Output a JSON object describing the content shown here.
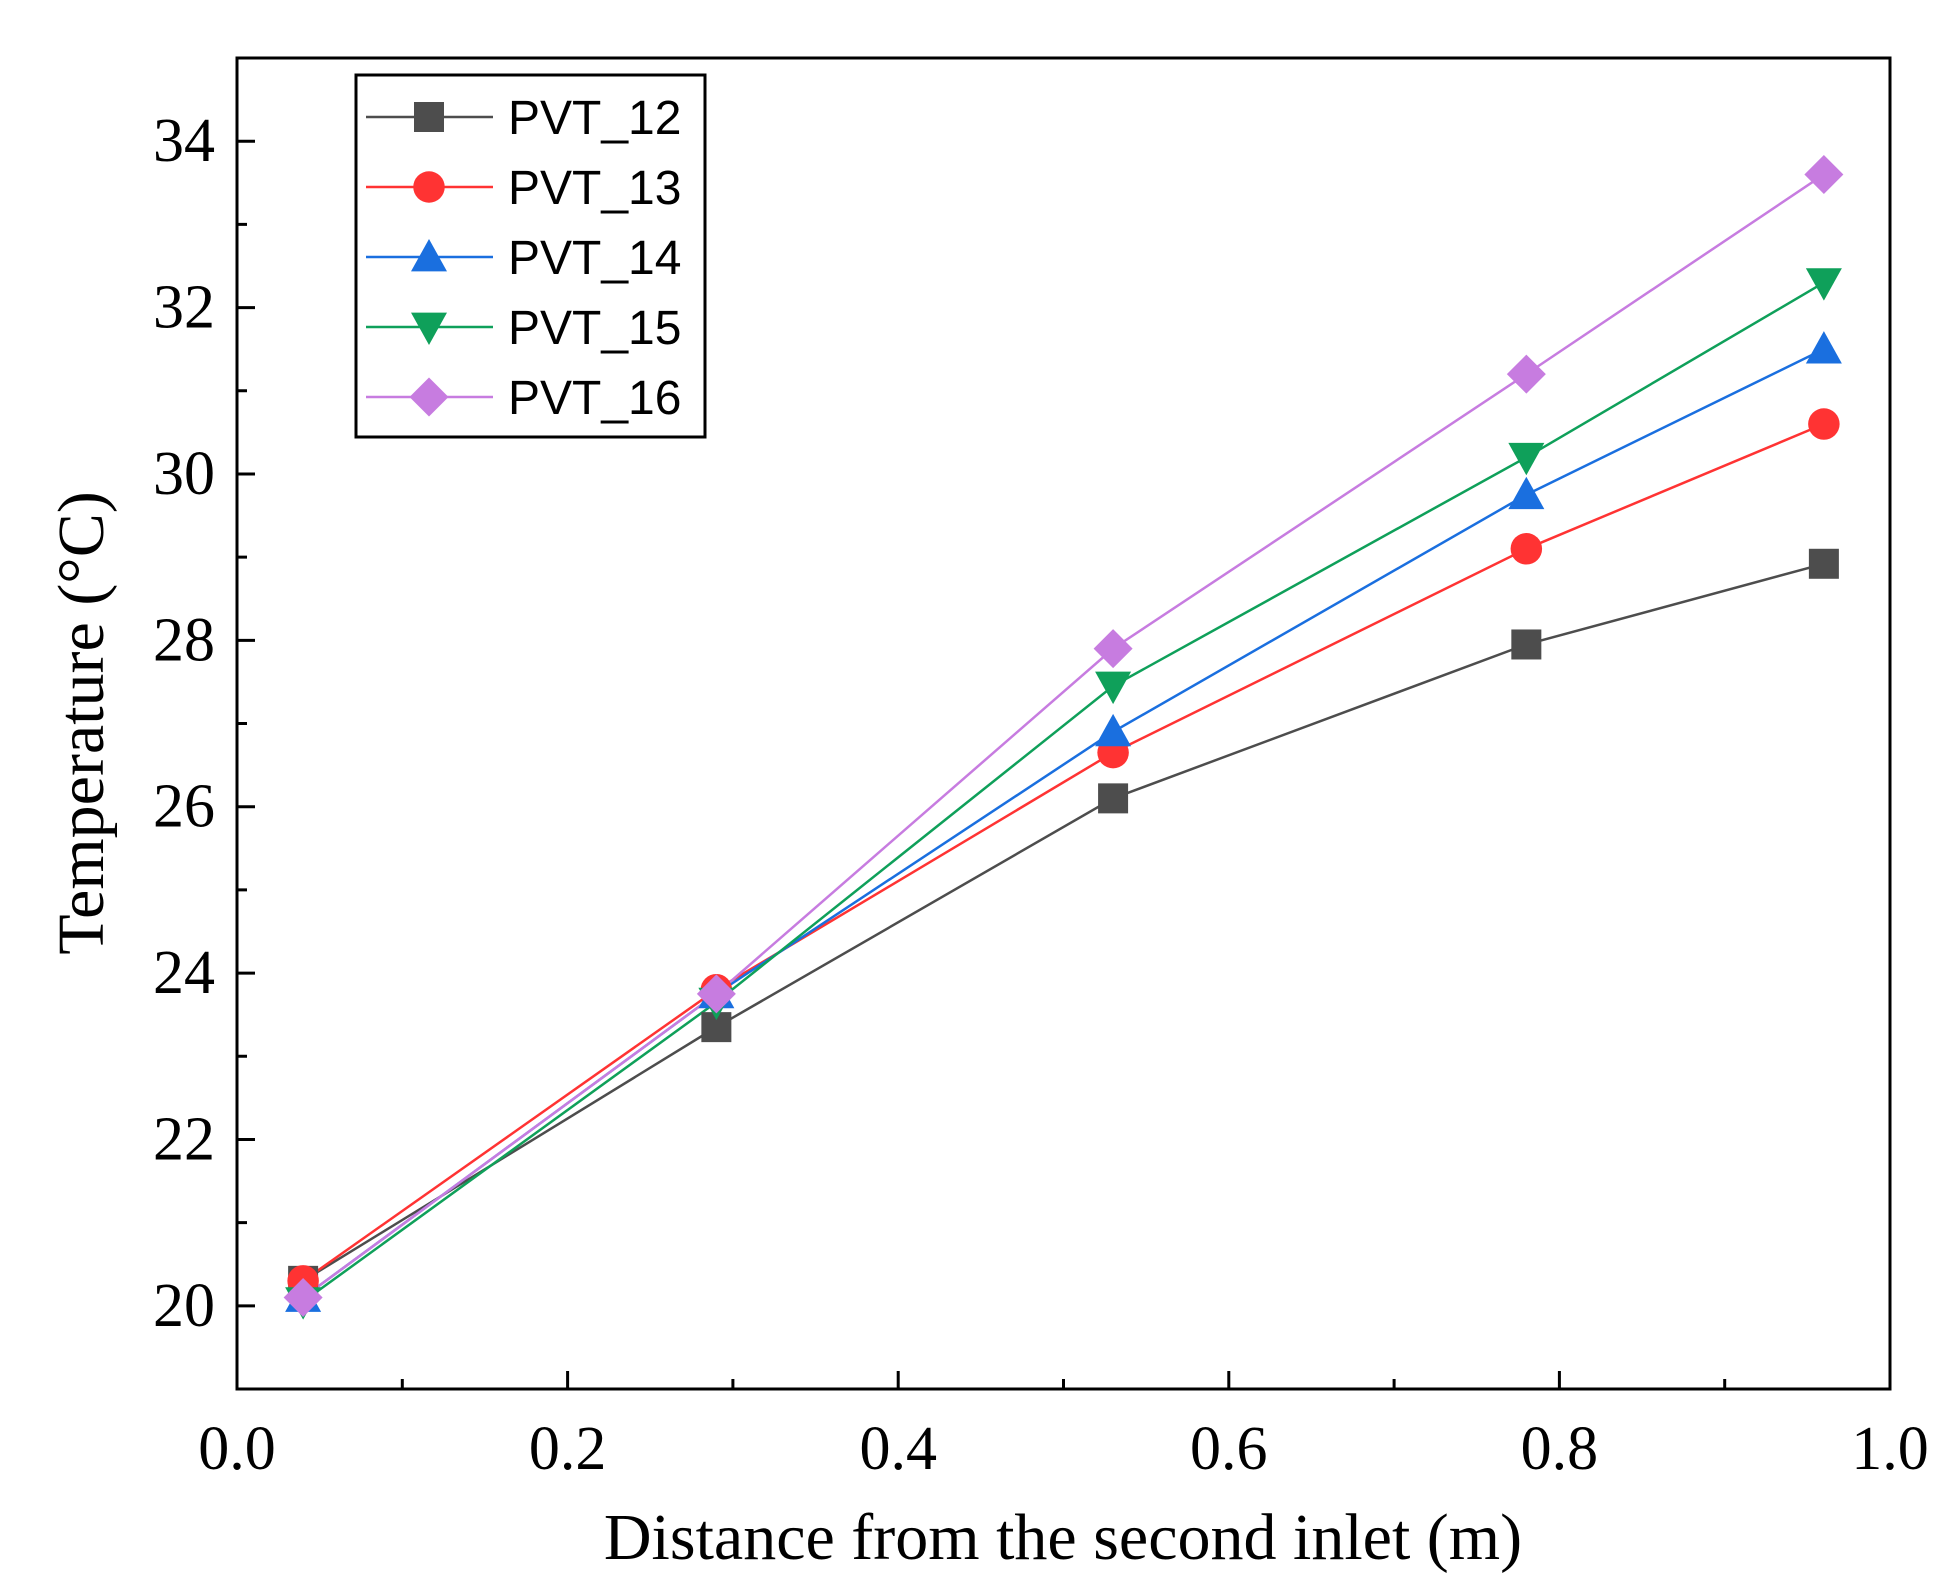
{
  "chart_data": {
    "type": "line",
    "title": "",
    "xlabel": "Distance from the second inlet (m)",
    "ylabel": "Temperature (°C)",
    "xlim": [
      0.0,
      1.0
    ],
    "ylim": [
      19.0,
      35.0
    ],
    "x_ticks": [
      0.0,
      0.2,
      0.4,
      0.6,
      0.8,
      1.0
    ],
    "x_tick_labels": [
      "0.0",
      "0.2",
      "0.4",
      "0.6",
      "0.8",
      "1.0"
    ],
    "y_ticks": [
      20,
      22,
      24,
      26,
      28,
      30,
      32,
      34
    ],
    "y_tick_labels": [
      "20",
      "22",
      "24",
      "26",
      "28",
      "30",
      "32",
      "34"
    ],
    "x_minor_ticks": [
      0.1,
      0.3,
      0.5,
      0.7,
      0.9
    ],
    "y_minor_ticks": [
      21,
      23,
      25,
      27,
      29,
      31,
      33
    ],
    "grid": false,
    "legend_position": "top-left",
    "x": [
      0.04,
      0.29,
      0.53,
      0.78,
      0.96
    ],
    "series": [
      {
        "name": "PVT_12",
        "color": "#4d4d4d",
        "marker": "square",
        "values": [
          20.3,
          23.35,
          26.1,
          27.95,
          28.92
        ]
      },
      {
        "name": "PVT_13",
        "color": "#ff3333",
        "marker": "circle",
        "values": [
          20.3,
          23.8,
          26.65,
          29.1,
          30.6
        ]
      },
      {
        "name": "PVT_14",
        "color": "#1a6fdf",
        "marker": "triangle-up",
        "values": [
          20.1,
          23.75,
          26.9,
          29.75,
          31.5
        ]
      },
      {
        "name": "PVT_15",
        "color": "#0fa05a",
        "marker": "triangle-down",
        "values": [
          20.05,
          23.65,
          27.45,
          30.2,
          32.3
        ]
      },
      {
        "name": "PVT_16",
        "color": "#c77ce0",
        "marker": "diamond",
        "values": [
          20.1,
          23.75,
          27.9,
          31.2,
          33.6
        ]
      }
    ]
  }
}
